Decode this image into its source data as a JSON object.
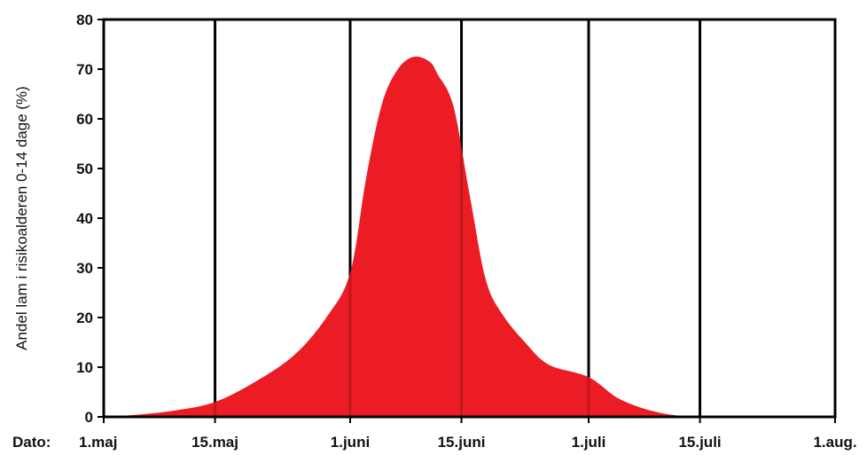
{
  "chart_data": {
    "type": "area",
    "title": "",
    "xlabel": "Dato:",
    "ylabel": "Andel lam i risikoalderen 0-14 dage (%)",
    "ylim": [
      0,
      80
    ],
    "yticks": [
      0,
      10,
      20,
      30,
      40,
      50,
      60,
      70,
      80
    ],
    "xticks": [
      "1.maj",
      "15.maj",
      "1.juni",
      "15.juni",
      "1.juli",
      "15.juli",
      "1.aug."
    ],
    "grid": "vertical lines at date ticks",
    "legend": "none",
    "colors": {
      "area": "#EC1C24",
      "gridline": "#000000"
    },
    "series": [
      {
        "x": [
          "1.maj",
          "5.maj",
          "10.maj",
          "15.maj",
          "20.maj",
          "25.maj",
          "29.maj",
          "1.juni",
          "3.juni",
          "5.juni",
          "7.juni",
          "9.juni",
          "11.juni",
          "12.juni",
          "14.juni",
          "16.juni",
          "18.juni",
          "20.juni",
          "23.juni",
          "26.juni",
          "1.juli",
          "5.juli",
          "10.juli",
          "15.juli",
          "20.juli",
          "25.juli",
          "1.aug."
        ],
        "values": [
          0,
          0.4,
          1.3,
          3,
          7,
          12.5,
          20,
          29,
          48,
          63,
          70,
          72.5,
          71.5,
          69,
          62.5,
          45,
          28,
          21,
          15,
          10.5,
          8,
          3.5,
          0.8,
          0,
          0,
          0,
          0
        ]
      }
    ]
  }
}
